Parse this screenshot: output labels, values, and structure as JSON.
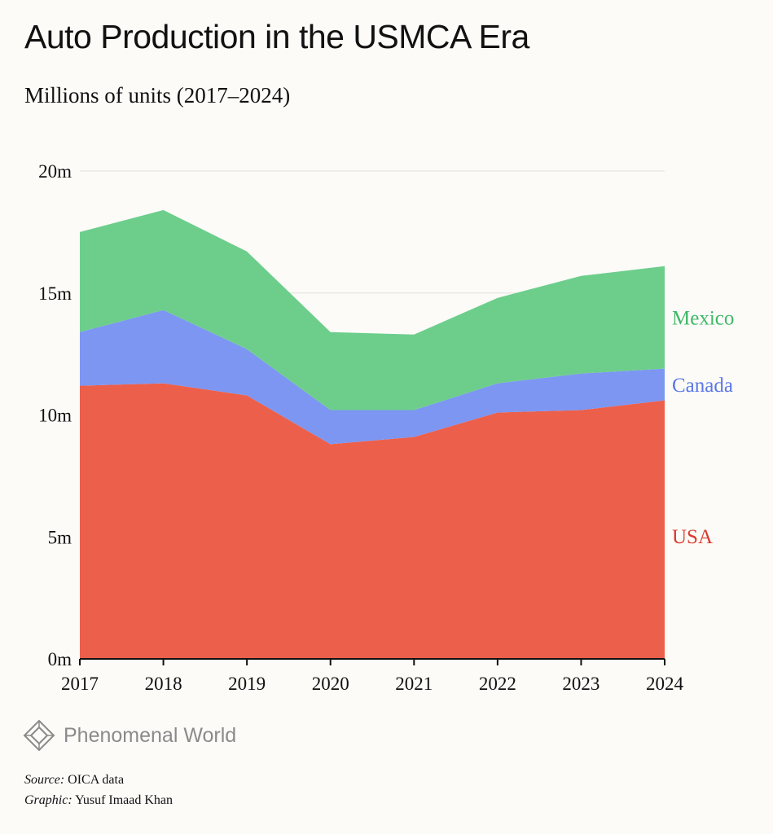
{
  "title": "Auto Production in the USMCA Era",
  "subtitle": "Millions of units (2017–2024)",
  "brand": {
    "name": "Phenomenal World",
    "icon": "diamond-logo-icon"
  },
  "credits": {
    "source_label": "Source:",
    "source_value": "OICA data",
    "graphic_label": "Graphic:",
    "graphic_value": "Yusuf Imaad Khan"
  },
  "chart_data": {
    "type": "area",
    "stacked": true,
    "x": [
      "2017",
      "2018",
      "2019",
      "2020",
      "2021",
      "2022",
      "2023",
      "2024"
    ],
    "y_ticks": [
      {
        "value": 0,
        "label": "0m"
      },
      {
        "value": 5,
        "label": "5m"
      },
      {
        "value": 10,
        "label": "10m"
      },
      {
        "value": 15,
        "label": "15m"
      },
      {
        "value": 20,
        "label": "20m"
      }
    ],
    "ylim": [
      0,
      20
    ],
    "grid": true,
    "series": [
      {
        "name": "USA",
        "color": "#ec5f4b",
        "label_color": "#d93b2b",
        "values": [
          11.2,
          11.3,
          10.8,
          8.8,
          9.1,
          10.1,
          10.2,
          10.6
        ]
      },
      {
        "name": "Canada",
        "color": "#7c96f2",
        "label_color": "#5b77e8",
        "values": [
          2.2,
          3.0,
          1.9,
          1.4,
          1.1,
          1.2,
          1.5,
          1.3
        ]
      },
      {
        "name": "Mexico",
        "color": "#6dce8c",
        "label_color": "#3fb866",
        "values": [
          4.1,
          4.1,
          4.0,
          3.2,
          3.1,
          3.5,
          4.0,
          4.2
        ]
      }
    ]
  }
}
